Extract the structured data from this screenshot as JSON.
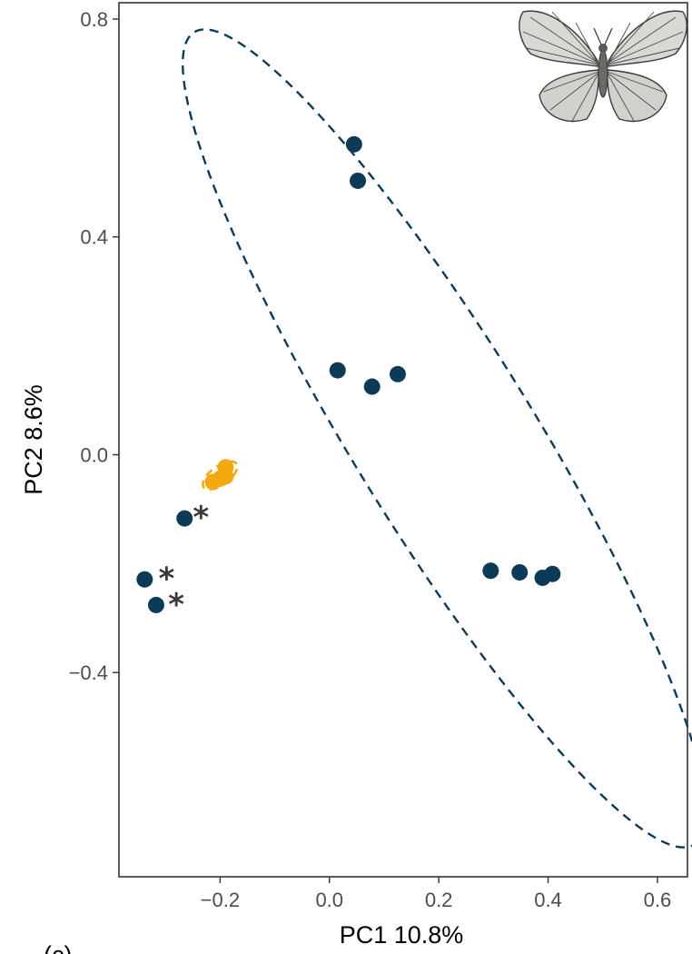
{
  "chart_data": {
    "type": "scatter",
    "xlabel": "PC1 10.8%",
    "ylabel": "PC2 8.6%",
    "xlim": [
      -0.385,
      0.655
    ],
    "ylim": [
      -0.775,
      0.83
    ],
    "x_ticks": [
      -0.2,
      0.0,
      0.2,
      0.4,
      0.6
    ],
    "x_tick_labels": [
      "−0.2",
      "0.0",
      "0.2",
      "0.4",
      "0.6"
    ],
    "y_ticks": [
      -0.4,
      0.0,
      0.4,
      0.8
    ],
    "y_tick_labels": [
      "−0.4",
      "0.0",
      "0.4",
      "0.8"
    ],
    "grid": false,
    "legend": "none",
    "panel_letter": "(c)",
    "series": [
      {
        "color": "#0d3b57",
        "points": [
          {
            "x": 0.045,
            "y": 0.57
          },
          {
            "x": 0.052,
            "y": 0.503
          },
          {
            "x": 0.015,
            "y": 0.155
          },
          {
            "x": 0.078,
            "y": 0.125
          },
          {
            "x": 0.125,
            "y": 0.148
          },
          {
            "x": 0.295,
            "y": -0.213
          },
          {
            "x": 0.348,
            "y": -0.216
          },
          {
            "x": 0.39,
            "y": -0.226
          },
          {
            "x": 0.408,
            "y": -0.219
          },
          {
            "x": -0.265,
            "y": -0.117
          },
          {
            "x": -0.338,
            "y": -0.229
          },
          {
            "x": -0.317,
            "y": -0.276
          }
        ],
        "ellipse": {
          "cx": 0.21,
          "cy": 0.03,
          "rx": 0.875,
          "ry": 0.165,
          "angle_deg": -58.5
        },
        "marked": [
          {
            "x": -0.235,
            "y": -0.098
          },
          {
            "x": -0.298,
            "y": -0.21
          },
          {
            "x": -0.28,
            "y": -0.258
          }
        ]
      },
      {
        "color": "#f5a80f",
        "points": [
          {
            "x": -0.213,
            "y": -0.05
          },
          {
            "x": -0.2,
            "y": -0.044
          },
          {
            "x": -0.19,
            "y": -0.04
          },
          {
            "x": -0.19,
            "y": -0.023
          }
        ],
        "ellipse": {
          "cx": -0.2,
          "cy": -0.038,
          "rx": 0.037,
          "ry": 0.017,
          "angle_deg": 36
        }
      }
    ],
    "marker_symbol": "*"
  },
  "image": {
    "icon": "butterfly-icon"
  }
}
